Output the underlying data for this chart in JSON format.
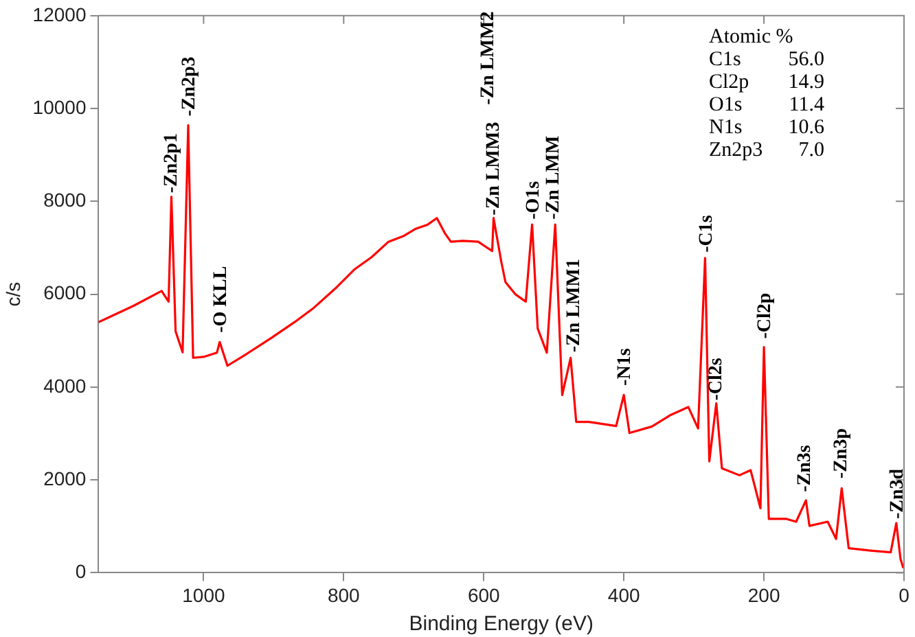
{
  "chart_data": {
    "type": "line",
    "xlabel": "Binding Energy (eV)",
    "ylabel": "c/s",
    "xlim": [
      1150,
      0
    ],
    "xticks": [
      1000,
      800,
      600,
      400,
      200,
      0
    ],
    "ylim": [
      0,
      12000
    ],
    "yticks": [
      0,
      2000,
      4000,
      6000,
      8000,
      10000,
      12000
    ],
    "grid": false,
    "legend": false,
    "marker": "none",
    "line_style": "solid",
    "series": [
      {
        "color": "#ff0000",
        "x": [
          1150,
          1100,
          1060,
          1050,
          1046,
          1040,
          1030,
          1022,
          1015,
          1000,
          981,
          977,
          966,
          940,
          903,
          870,
          844,
          810,
          785,
          760,
          736,
          715,
          697,
          680,
          667,
          655,
          647,
          630,
          608,
          595,
          588,
          586,
          575,
          569,
          555,
          540,
          531,
          523,
          510,
          498,
          488,
          476,
          468,
          450,
          411,
          400,
          392,
          360,
          333,
          308,
          294,
          284,
          278,
          268,
          260,
          235,
          219,
          205,
          200,
          193,
          168,
          154,
          140,
          135,
          109,
          97,
          89,
          79,
          50,
          19,
          11,
          5,
          1
        ],
        "values": [
          5400,
          5750,
          6070,
          5840,
          8100,
          5200,
          4750,
          9640,
          4630,
          4650,
          4740,
          4970,
          4460,
          4700,
          5060,
          5400,
          5690,
          6150,
          6530,
          6800,
          7130,
          7250,
          7410,
          7500,
          7640,
          7300,
          7130,
          7150,
          7130,
          7000,
          6930,
          7640,
          6700,
          6260,
          6000,
          5840,
          7500,
          5260,
          4740,
          7500,
          3830,
          4630,
          3250,
          3250,
          3160,
          3830,
          3010,
          3150,
          3400,
          3570,
          3110,
          6780,
          2400,
          3650,
          2250,
          2100,
          2210,
          1390,
          4860,
          1160,
          1160,
          1100,
          1560,
          1010,
          1100,
          730,
          1820,
          530,
          480,
          440,
          1070,
          300,
          100
        ]
      }
    ],
    "annotations": [
      {
        "text": "-Zn2p1",
        "x": 1046,
        "y": 8120
      },
      {
        "text": "-Zn2p3",
        "x": 1020,
        "y": 9770
      },
      {
        "text": "-O KLL",
        "x": 975,
        "y": 5110
      },
      {
        "text": "-Zn LMM3",
        "x": 586,
        "y": 7640
      },
      {
        "text": "-O1s",
        "x": 529,
        "y": 7550
      },
      {
        "text": "-Zn LMM",
        "x": 500,
        "y": 7550
      },
      {
        "text": "-Zn LMM1",
        "x": 471,
        "y": 4690
      },
      {
        "text": "-N1s",
        "x": 398,
        "y": 3970
      },
      {
        "text": "-C1s",
        "x": 282,
        "y": 6840
      },
      {
        "text": "-Cl2s",
        "x": 268,
        "y": 3650
      },
      {
        "text": "-Cl2p",
        "x": 198,
        "y": 4980
      },
      {
        "text": "-Zn3s",
        "x": 141,
        "y": 1680
      },
      {
        "text": "-Zn3p",
        "x": 89,
        "y": 1970
      },
      {
        "text": "-Zn3d",
        "x": 9,
        "y": 1100
      },
      "-Zn LMM2",
      "Atomic %",
      "C1s    56.0",
      "Cl2p   14.9",
      "O1s    11.4",
      "N1s    10.6",
      "Zn2p3   7.0"
    ]
  }
}
